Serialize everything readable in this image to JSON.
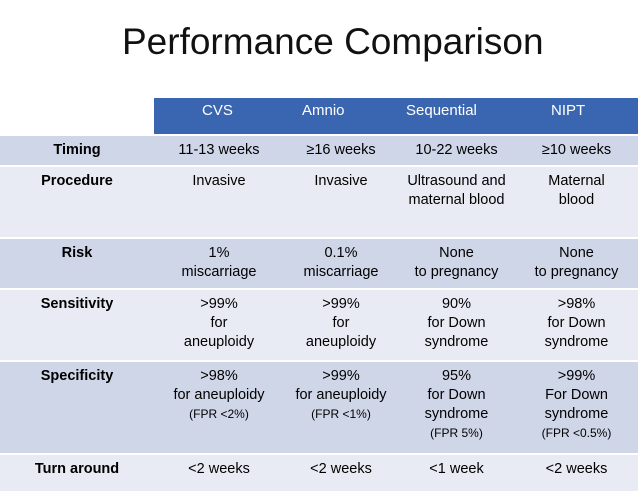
{
  "title": "Performance Comparison",
  "table": {
    "columns": [
      "",
      "CVS",
      "Amnio",
      "Sequential",
      "NIPT"
    ],
    "rows": [
      {
        "label": "Timing",
        "cells": [
          {
            "lines": [
              "11-13 weeks"
            ]
          },
          {
            "lines": [
              "≥16 weeks"
            ]
          },
          {
            "lines": [
              "10-22 weeks"
            ]
          },
          {
            "lines": [
              "≥10 weeks"
            ]
          }
        ]
      },
      {
        "label": "Procedure",
        "cells": [
          {
            "lines": [
              "Invasive"
            ]
          },
          {
            "lines": [
              "Invasive"
            ]
          },
          {
            "lines": [
              "Ultrasound and",
              "maternal blood"
            ]
          },
          {
            "lines": [
              "Maternal",
              "blood"
            ]
          }
        ]
      },
      {
        "label": "Risk",
        "cells": [
          {
            "lines": [
              "1%",
              "miscarriage"
            ]
          },
          {
            "lines": [
              "0.1%",
              "miscarriage"
            ]
          },
          {
            "lines": [
              "None",
              "to pregnancy"
            ]
          },
          {
            "lines": [
              "None",
              "to pregnancy"
            ]
          }
        ]
      },
      {
        "label": "Sensitivity",
        "cells": [
          {
            "lines": [
              ">99%",
              "for",
              "aneuploidy"
            ]
          },
          {
            "lines": [
              ">99%",
              "for",
              "aneuploidy"
            ]
          },
          {
            "lines": [
              "90%",
              "for Down",
              "syndrome"
            ]
          },
          {
            "lines": [
              ">98%",
              "for Down",
              "syndrome"
            ]
          }
        ]
      },
      {
        "label": "Specificity",
        "cells": [
          {
            "lines": [
              ">98%",
              "for aneuploidy"
            ],
            "note": "(FPR <2%)"
          },
          {
            "lines": [
              ">99%",
              "for aneuploidy"
            ],
            "note": "(FPR <1%)"
          },
          {
            "lines": [
              "95%",
              "for Down",
              "syndrome"
            ],
            "note": "(FPR 5%)"
          },
          {
            "lines": [
              ">99%",
              "For Down",
              "syndrome"
            ],
            "note": "(FPR <0.5%)"
          }
        ]
      },
      {
        "label": "Turn around",
        "cells": [
          {
            "lines": [
              "<2 weeks"
            ]
          },
          {
            "lines": [
              "<2 weeks"
            ]
          },
          {
            "lines": [
              "<1 week"
            ]
          },
          {
            "lines": [
              "<2 weeks"
            ]
          }
        ]
      }
    ]
  }
}
